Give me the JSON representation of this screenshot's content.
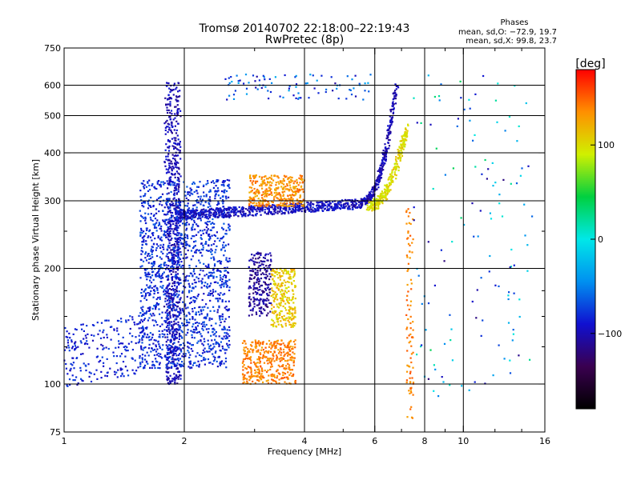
{
  "chart_data": {
    "type": "scatter",
    "title": "Tromsø 20140702 22:18:00–22:19:43",
    "subtitle": "RwPretec (8p)",
    "xlabel": "Frequency [MHz]",
    "ylabel": "Stationary phase Virtual Height [km]",
    "x_scale": "log",
    "y_scale": "log",
    "xlim": [
      1,
      16
    ],
    "ylim": [
      75,
      750
    ],
    "x_ticks": [
      1,
      2,
      4,
      6,
      8,
      10,
      16
    ],
    "x_tick_labels": [
      "1",
      "2",
      "4",
      "6",
      "8",
      "10",
      "16"
    ],
    "x_minor_ticks": [
      3,
      5,
      7,
      9,
      12,
      14
    ],
    "y_ticks": [
      75,
      100,
      200,
      300,
      400,
      500,
      600,
      750
    ],
    "y_tick_labels": [
      "75",
      "100",
      "200",
      "300",
      "400",
      "500",
      "600",
      "750"
    ],
    "y_minor_ticks": [
      125,
      150,
      175,
      250
    ],
    "grid_x": [
      2,
      4,
      6,
      8,
      10
    ],
    "grid_y": [
      100,
      200,
      300,
      400,
      500,
      600
    ],
    "grid": true,
    "stats": {
      "title": "Phases",
      "line1": "mean, sd,O: −72.9, 19.7",
      "line2": "mean, sd,X:  99.8, 23.7"
    },
    "colorbar": {
      "label": "[deg]",
      "range": [
        -180,
        180
      ],
      "ticks": [
        100,
        0,
        -100
      ],
      "tick_labels": [
        "100",
        "0",
        "−100"
      ],
      "colormap": [
        "#000000",
        "#3a0050",
        "#1010d0",
        "#0090f0",
        "#00e8e8",
        "#00d040",
        "#d0f000",
        "#ff9000",
        "#ff0000"
      ]
    },
    "series": [
      {
        "cluster": "low-band O trace",
        "x_range": [
          1.0,
          1.6
        ],
        "y_range": [
          98,
          140
        ],
        "phase": -85
      },
      {
        "cluster": "spread column near 1.9 MHz",
        "x_range": [
          1.8,
          1.95
        ],
        "y_range": [
          100,
          610
        ],
        "phase": -100
      },
      {
        "cluster": "F-layer spread 1.6-2.6 MHz",
        "x_range": [
          1.55,
          2.6
        ],
        "y_range": [
          110,
          340
        ],
        "phase": -80
      },
      {
        "cluster": "F-layer O trace",
        "x_range": [
          1.9,
          5.6
        ],
        "y_range": [
          270,
          300
        ],
        "phase": -95
      },
      {
        "cluster": "F-layer cusp",
        "x_range": [
          5.6,
          6.9
        ],
        "y_range": [
          300,
          600
        ],
        "phase": -100
      },
      {
        "cluster": "X trace 3-4 MHz",
        "x_range": [
          2.9,
          4.0
        ],
        "y_range": [
          290,
          350
        ],
        "phase": 135
      },
      {
        "cluster": "X trace cusp",
        "x_range": [
          5.8,
          7.4
        ],
        "y_range": [
          290,
          460
        ],
        "phase": 100
      },
      {
        "cluster": "low X band",
        "x_range": [
          2.8,
          3.8
        ],
        "y_range": [
          100,
          130
        ],
        "phase": 140
      },
      {
        "cluster": "mid X band",
        "x_range": [
          3.3,
          3.8
        ],
        "y_range": [
          140,
          200
        ],
        "phase": 110
      },
      {
        "cluster": "mid O band",
        "x_range": [
          2.9,
          3.3
        ],
        "y_range": [
          150,
          220
        ],
        "phase": -110
      },
      {
        "cluster": "vertical line 7.3 MHz",
        "x_range": [
          7.2,
          7.5
        ],
        "y_range": [
          80,
          300
        ],
        "phase": 140
      },
      {
        "cluster": "sparse high frequency echoes",
        "x_range": [
          7.5,
          15.0
        ],
        "y_range": [
          90,
          650
        ],
        "phase": -40
      }
    ]
  }
}
